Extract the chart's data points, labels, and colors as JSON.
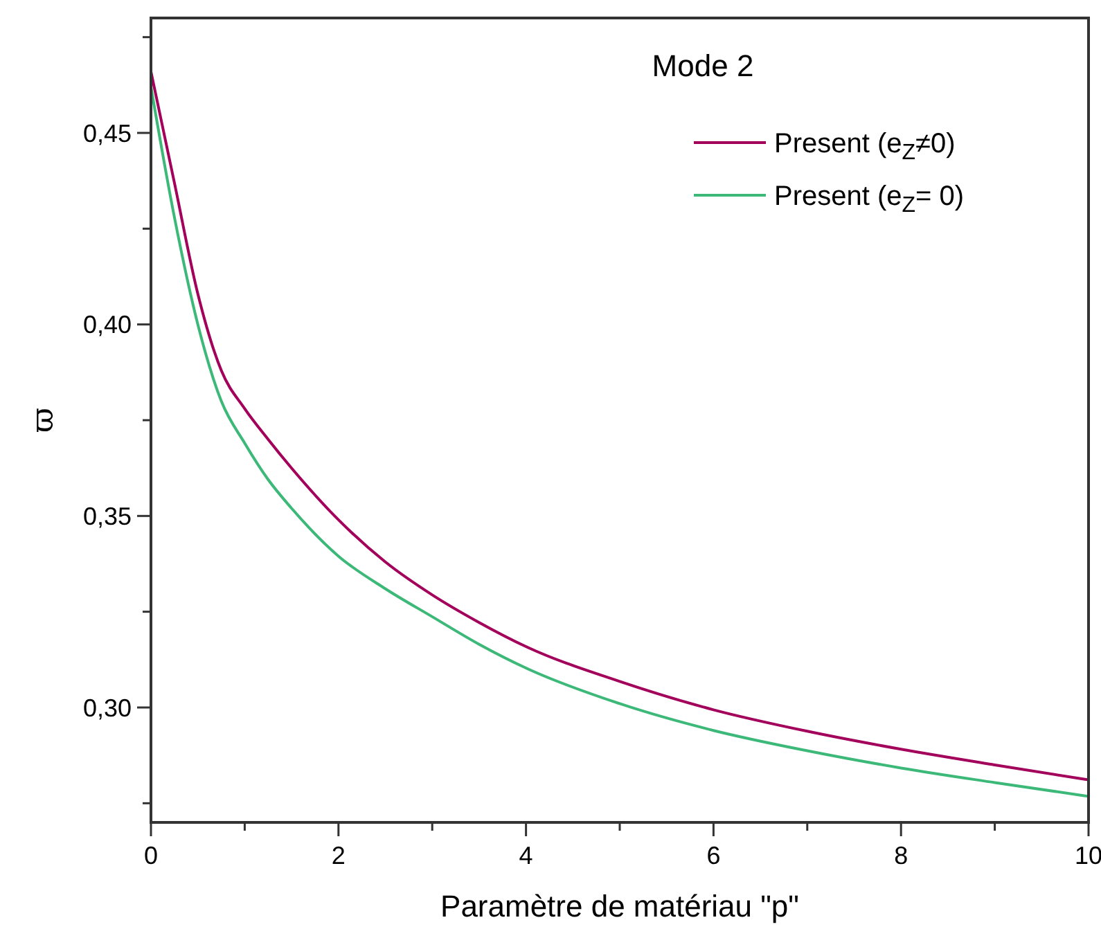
{
  "chart_data": {
    "type": "line",
    "title": "Mode 2",
    "xlabel": "Paramètre de matériau \"p\"",
    "ylabel": "ϖ",
    "x": [
      0,
      0.25,
      0.5,
      0.75,
      1,
      1.25,
      1.5,
      2,
      2.5,
      3,
      3.5,
      4,
      5,
      6,
      7,
      8,
      9,
      10
    ],
    "series": [
      {
        "name": "Present (e$_{Z}$≠0)",
        "color": "#a3005c",
        "values": [
          0.466,
          0.437,
          0.408,
          0.388,
          0.378,
          0.37,
          0.3625,
          0.349,
          0.338,
          0.3294,
          0.3222,
          0.3159,
          0.3068,
          0.2994,
          0.2938,
          0.2891,
          0.285,
          0.2811
        ]
      },
      {
        "name": "Present (e$_{Z}$= 0)",
        "color": "#3cb878",
        "values": [
          0.462,
          0.428,
          0.4,
          0.38,
          0.369,
          0.3595,
          0.352,
          0.3395,
          0.331,
          0.3237,
          0.3165,
          0.3103,
          0.301,
          0.294,
          0.2887,
          0.2842,
          0.2804,
          0.2768
        ]
      }
    ],
    "xlim": [
      0,
      10
    ],
    "xticks": [
      0,
      {
        "value": 1,
        "label": null
      },
      2,
      {
        "value": 3,
        "label": null
      },
      4,
      {
        "value": 5,
        "label": null
      },
      6,
      {
        "value": 7,
        "label": null
      },
      8,
      {
        "value": 9,
        "label": null
      },
      10
    ],
    "ylim": [
      0.27,
      0.48
    ],
    "yticks": [
      {
        "value": 0.275,
        "label": null
      },
      {
        "value": 0.3,
        "label": "0,30"
      },
      {
        "value": 0.325,
        "label": null
      },
      {
        "value": 0.35,
        "label": "0,35"
      },
      {
        "value": 0.375,
        "label": null
      },
      {
        "value": 0.4,
        "label": "0,40"
      },
      {
        "value": 0.425,
        "label": null
      },
      {
        "value": 0.45,
        "label": "0,45"
      },
      {
        "value": 0.475,
        "label": null
      }
    ],
    "grid": false,
    "legend": "top right",
    "marker": "none",
    "line_style": "solid"
  }
}
